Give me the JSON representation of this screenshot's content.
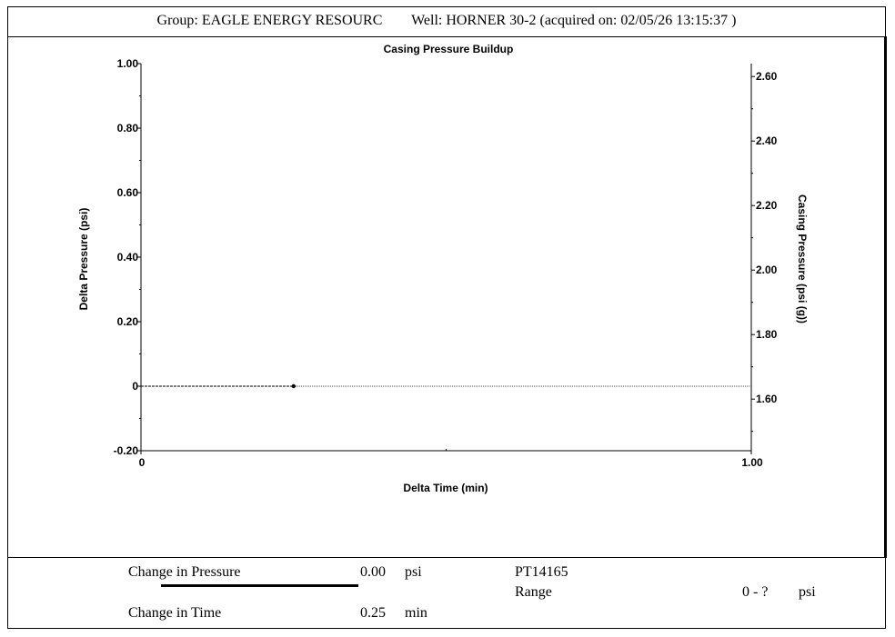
{
  "header": {
    "group_label": "Group:",
    "group_value": "EAGLE ENERGY RESOURC",
    "well_label": "Well:",
    "well_value": "HORNER 30-2",
    "acquired_text": "(acquired on: 02/05/26 13:15:37 )"
  },
  "chart_data": {
    "type": "line",
    "title": "Casing Pressure Buildup",
    "xlabel": "Delta Time (min)",
    "ylabel": "Delta Pressure (psi)",
    "y2label": "Casing Pressure (psi (g))",
    "xlim": [
      0,
      1.0
    ],
    "ylim": [
      -0.2,
      1.0
    ],
    "y2lim": [
      1.44,
      2.64
    ],
    "x_ticks": [
      {
        "v": 0,
        "label": "0"
      },
      {
        "v": 1.0,
        "label": "1.00"
      }
    ],
    "x_minor": [
      0.5
    ],
    "y_ticks": [
      {
        "v": 1.0,
        "label": "1.00"
      },
      {
        "v": 0.8,
        "label": "0.80"
      },
      {
        "v": 0.6,
        "label": "0.60"
      },
      {
        "v": 0.4,
        "label": "0.40"
      },
      {
        "v": 0.2,
        "label": "0.20"
      },
      {
        "v": 0,
        "label": "0"
      },
      {
        "v": -0.2,
        "label": "-0.20"
      }
    ],
    "y_minor": [
      0.9,
      0.7,
      0.5,
      0.3,
      0.1,
      -0.1
    ],
    "y2_ticks": [
      {
        "v": 2.6,
        "label": "2.60"
      },
      {
        "v": 2.4,
        "label": "2.40"
      },
      {
        "v": 2.2,
        "label": "2.20"
      },
      {
        "v": 2.0,
        "label": "2.00"
      },
      {
        "v": 1.8,
        "label": "1.80"
      },
      {
        "v": 1.6,
        "label": "1.60"
      }
    ],
    "y2_minor": [
      2.5,
      2.3,
      2.1,
      1.9,
      1.7,
      1.5
    ],
    "reference_line_y": 0,
    "series": [
      {
        "x": [
          0,
          0.25
        ],
        "y": [
          0,
          0
        ]
      }
    ],
    "grid": false,
    "legend": "none"
  },
  "footer": {
    "pressure_label": "Change in Pressure",
    "pressure_value": "0.00",
    "pressure_unit": "psi",
    "time_label": "Change in Time",
    "time_value": "0.25",
    "time_unit": "min",
    "sensor_id": "PT14165",
    "range_label": "Range",
    "range_value": "0 - ?",
    "range_unit": "psi"
  }
}
